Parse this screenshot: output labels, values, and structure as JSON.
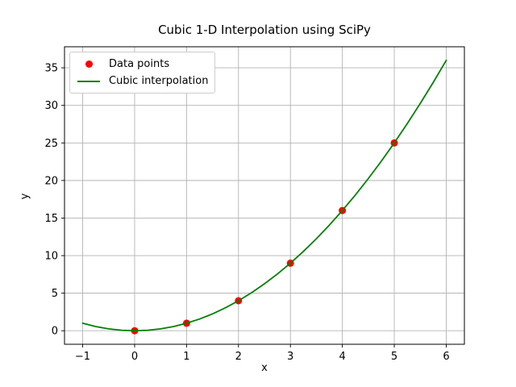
{
  "chart_data": {
    "type": "line",
    "title": "Cubic 1-D Interpolation using SciPy",
    "xlabel": "x",
    "ylabel": "y",
    "xlim": [
      -1.35,
      6.35
    ],
    "ylim": [
      -1.8,
      37.8
    ],
    "x_ticks": [
      -1,
      0,
      1,
      2,
      3,
      4,
      5,
      6
    ],
    "x_tick_labels": [
      "−1",
      "0",
      "1",
      "2",
      "3",
      "4",
      "5",
      "6"
    ],
    "y_ticks": [
      0,
      5,
      10,
      15,
      20,
      25,
      30,
      35
    ],
    "y_tick_labels": [
      "0",
      "5",
      "10",
      "15",
      "20",
      "25",
      "30",
      "35"
    ],
    "grid": true,
    "legend_position": "upper left",
    "series": [
      {
        "name": "Data points",
        "type": "scatter",
        "color": "#ff0000",
        "marker_radius": 4.5,
        "x": [
          0,
          1,
          2,
          3,
          4,
          5
        ],
        "y": [
          0,
          1,
          4,
          9,
          16,
          25
        ]
      },
      {
        "name": "Cubic interpolation",
        "type": "line",
        "color": "#008000",
        "line_width": 1.8,
        "x": [
          -1,
          -0.75,
          -0.5,
          -0.25,
          0,
          0.25,
          0.5,
          0.75,
          1,
          1.25,
          1.5,
          1.75,
          2,
          2.25,
          2.5,
          2.75,
          3,
          3.25,
          3.5,
          3.75,
          4,
          4.25,
          4.5,
          4.75,
          5,
          5.25,
          5.5,
          5.75,
          6
        ],
        "y": [
          1,
          0.5625,
          0.25,
          0.0625,
          0,
          0.0625,
          0.25,
          0.5625,
          1,
          1.5625,
          2.25,
          3.0625,
          4,
          5.0625,
          6.25,
          7.5625,
          9,
          10.5625,
          12.25,
          14.0625,
          16,
          18.0625,
          20.25,
          22.5625,
          25,
          27.5625,
          30.25,
          33.0625,
          36
        ]
      }
    ]
  },
  "legend": {
    "items": [
      {
        "label": "Data points",
        "marker": "dot",
        "color": "#ff0000"
      },
      {
        "label": "Cubic interpolation",
        "marker": "line",
        "color": "#008000"
      }
    ]
  },
  "colors": {
    "background": "#ffffff",
    "grid": "#b3b3b3",
    "frame": "#000000",
    "tick": "#000000",
    "text": "#000000",
    "legend_border": "#cccccc",
    "legend_background": "#ffffff"
  }
}
